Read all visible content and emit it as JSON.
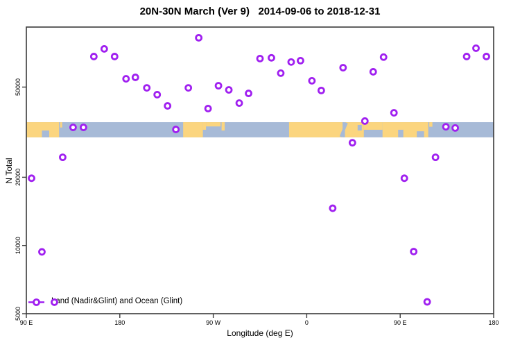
{
  "chart_data": {
    "type": "scatter",
    "title": "20N-30N March (Ver 9)   2014-09-06 to 2018-12-31",
    "xlabel": "Longitude (deg E)",
    "ylabel": "N Total",
    "legend": "Land (Nadir&Glint) and Ocean (Glint)",
    "grid": false,
    "legend_position": "bottom-left-inside",
    "x_axis": {
      "range": [
        90,
        540
      ],
      "ticks": [
        {
          "value": 90,
          "label": "90 E"
        },
        {
          "value": 180,
          "label": "180"
        },
        {
          "value": 270,
          "label": "90 W"
        },
        {
          "value": 360,
          "label": "0"
        },
        {
          "value": 450,
          "label": "90 E"
        },
        {
          "value": 540,
          "label": "180"
        }
      ]
    },
    "y_axis": {
      "scale": "log",
      "range": [
        5000,
        92000
      ],
      "ticks": [
        {
          "value": 5000,
          "label": "5000"
        },
        {
          "value": 10000,
          "label": "10000"
        },
        {
          "value": 20000,
          "label": "20000"
        },
        {
          "value": 50000,
          "label": "50000"
        }
      ]
    },
    "point_style": {
      "color": "#A020F0",
      "fill": "#FFFFFF",
      "radius": 4,
      "stroke_width": 2.8
    },
    "points": [
      [
        256,
        82500
      ],
      [
        165,
        73700
      ],
      [
        155,
        68200
      ],
      [
        175,
        68200
      ],
      [
        186,
        54400
      ],
      [
        195,
        55200
      ],
      [
        206,
        49600
      ],
      [
        216,
        46300
      ],
      [
        226,
        41300
      ],
      [
        246,
        49600
      ],
      [
        265,
        40200
      ],
      [
        275,
        50700
      ],
      [
        285,
        48600
      ],
      [
        295,
        42500
      ],
      [
        304,
        46900
      ],
      [
        315,
        66800
      ],
      [
        326,
        67300
      ],
      [
        335,
        57600
      ],
      [
        345,
        64500
      ],
      [
        354,
        65400
      ],
      [
        365,
        53300
      ],
      [
        374,
        48300
      ],
      [
        395,
        60900
      ],
      [
        416,
        35400
      ],
      [
        424,
        58400
      ],
      [
        434,
        67800
      ],
      [
        444,
        38500
      ],
      [
        514,
        68200
      ],
      [
        523,
        74200
      ],
      [
        533,
        68200
      ],
      [
        135,
        33200
      ],
      [
        145,
        33200
      ],
      [
        234,
        32500
      ],
      [
        494,
        33400
      ],
      [
        503,
        33000
      ],
      [
        125,
        24500
      ],
      [
        95,
        19800
      ],
      [
        404,
        28400
      ],
      [
        484,
        24500
      ],
      [
        454,
        19800
      ],
      [
        385,
        14600
      ],
      [
        105,
        9370
      ],
      [
        463,
        9400
      ],
      [
        476,
        5640
      ],
      [
        117,
        5620
      ]
    ],
    "map_band": {
      "y_range": [
        30000,
        35000
      ],
      "ocean_color": "#A7BAD7",
      "land_color": "#FBD57F",
      "land": [
        {
          "from": 90,
          "to": 121.5,
          "y0": 0,
          "y1": 1
        },
        {
          "from": 122.5,
          "to": 124.5,
          "y0": 0,
          "y1": 0.35
        },
        {
          "from": 241,
          "to": 260,
          "y0": 0,
          "y1": 1
        },
        {
          "from": 260,
          "to": 263,
          "y0": 0,
          "y1": 0.5
        },
        {
          "from": 263,
          "to": 277,
          "y0": 0,
          "y1": 0.28
        },
        {
          "from": 278,
          "to": 281,
          "y0": 0,
          "y1": 0.55
        },
        {
          "from": 343,
          "to": 394.5,
          "y0": 0,
          "y1": 1
        },
        {
          "from": 396.8,
          "to": 415,
          "y0": 0,
          "y1": 1
        },
        {
          "from": 415,
          "to": 433,
          "y0": 0,
          "y1": 0.5
        },
        {
          "from": 433,
          "to": 477,
          "y0": 0,
          "y1": 1
        },
        {
          "from": 478,
          "to": 481,
          "y0": 0,
          "y1": 0.3
        }
      ],
      "ocean_patches": [
        {
          "from": 105,
          "to": 112,
          "y0": 0.55,
          "y1": 1
        },
        {
          "from": 394.3,
          "to": 396.9,
          "y0": 0,
          "y1": 1,
          "rotate": 22
        },
        {
          "from": 409,
          "to": 413,
          "y0": 0.18,
          "y1": 0.55
        },
        {
          "from": 448,
          "to": 453,
          "y0": 0.5,
          "y1": 1
        },
        {
          "from": 466,
          "to": 473,
          "y0": 0.6,
          "y1": 1
        }
      ]
    }
  }
}
